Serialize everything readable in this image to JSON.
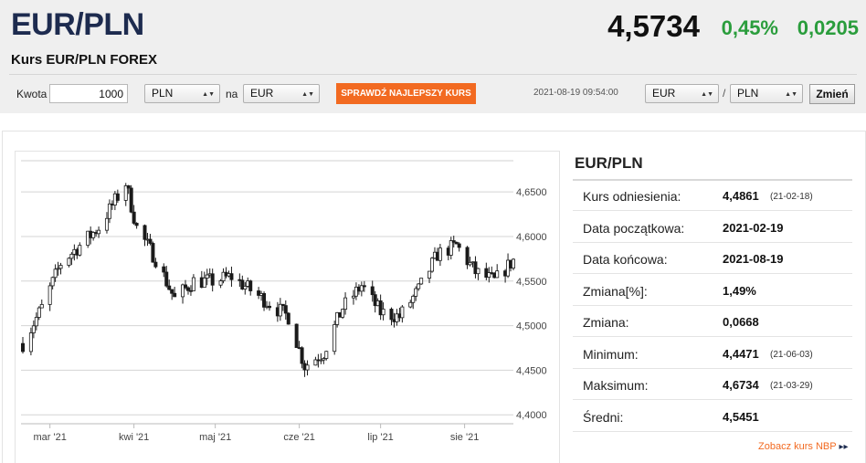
{
  "header": {
    "title": "EUR/PLN",
    "subtitle": "Kurs EUR/PLN FOREX",
    "rate": "4,5734",
    "change_pct": "0,45%",
    "change_abs": "0,0205"
  },
  "converter": {
    "amount_label": "Kwota",
    "amount_value": "1000",
    "from_currency": "PLN",
    "to_label": "na",
    "to_currency": "EUR",
    "cta_label": "SPRAWDŹ NAJLEPSZY KURS",
    "timestamp": "2021-08-19 09:54:00",
    "pair_from": "EUR",
    "pair_sep": "/",
    "pair_to": "PLN",
    "change_button": "Zmień"
  },
  "stats": {
    "title": "EUR/PLN",
    "rows": [
      {
        "label": "Kurs odniesienia:",
        "value": "4,4861",
        "date": "(21-02-18)"
      },
      {
        "label": "Data początkowa:",
        "value": "2021-02-19",
        "date": ""
      },
      {
        "label": "Data końcowa:",
        "value": "2021-08-19",
        "date": ""
      },
      {
        "label": "Zmiana[%]:",
        "value": "1,49%",
        "date": ""
      },
      {
        "label": "Zmiana:",
        "value": "0,0668",
        "date": ""
      },
      {
        "label": "Minimum:",
        "value": "4,4471",
        "date": "(21-06-03)"
      },
      {
        "label": "Maksimum:",
        "value": "4,6734",
        "date": "(21-03-29)"
      },
      {
        "label": "Średni:",
        "value": "4,5451",
        "date": ""
      }
    ],
    "nbp_link": "Zobacz kurs NBP",
    "nbp_arrow": "▸▸"
  },
  "chart_data": {
    "type": "candlestick",
    "y_range": [
      4.39,
      4.685
    ],
    "y_ticks": [
      "4,6500",
      "4,6000",
      "4,5500",
      "4,5000",
      "4,4500",
      "4,4000"
    ],
    "y_tick_values": [
      4.65,
      4.6,
      4.55,
      4.5,
      4.45,
      4.4
    ],
    "x_ticks": [
      "mar '21",
      "kwi '21",
      "maj '21",
      "cze '21",
      "lip '21",
      "sie '21"
    ],
    "grid": "horizontal",
    "start_date": "2021-02-19",
    "end_date": "2021-08-19",
    "close_path": [
      {
        "date": "2021-02-19",
        "value": 4.48
      },
      {
        "date": "2021-02-26",
        "value": 4.52
      },
      {
        "date": "2021-03-05",
        "value": 4.57
      },
      {
        "date": "2021-03-12",
        "value": 4.59
      },
      {
        "date": "2021-03-19",
        "value": 4.61
      },
      {
        "date": "2021-03-29",
        "value": 4.66
      },
      {
        "date": "2021-04-02",
        "value": 4.61
      },
      {
        "date": "2021-04-09",
        "value": 4.575
      },
      {
        "date": "2021-04-16",
        "value": 4.53
      },
      {
        "date": "2021-04-23",
        "value": 4.55
      },
      {
        "date": "2021-04-30",
        "value": 4.55
      },
      {
        "date": "2021-05-07",
        "value": 4.555
      },
      {
        "date": "2021-05-14",
        "value": 4.54
      },
      {
        "date": "2021-05-21",
        "value": 4.525
      },
      {
        "date": "2021-05-28",
        "value": 4.51
      },
      {
        "date": "2021-06-03",
        "value": 4.455
      },
      {
        "date": "2021-06-10",
        "value": 4.47
      },
      {
        "date": "2021-06-17",
        "value": 4.52
      },
      {
        "date": "2021-06-24",
        "value": 4.545
      },
      {
        "date": "2021-07-01",
        "value": 4.515
      },
      {
        "date": "2021-07-08",
        "value": 4.51
      },
      {
        "date": "2021-07-15",
        "value": 4.54
      },
      {
        "date": "2021-07-22",
        "value": 4.58
      },
      {
        "date": "2021-07-29",
        "value": 4.59
      },
      {
        "date": "2021-08-05",
        "value": 4.56
      },
      {
        "date": "2021-08-12",
        "value": 4.55
      },
      {
        "date": "2021-08-19",
        "value": 4.5734
      }
    ]
  }
}
